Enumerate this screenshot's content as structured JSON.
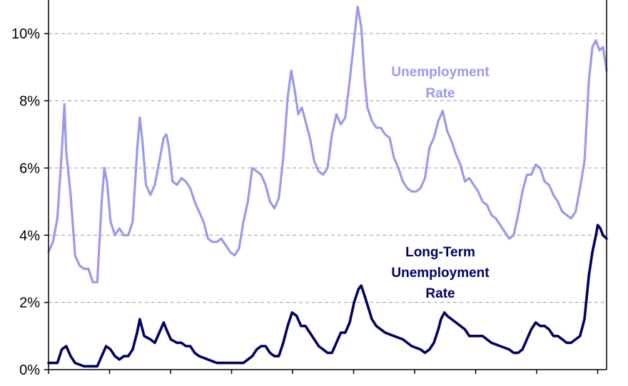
{
  "chart_data": {
    "type": "line",
    "title": "",
    "xlabel": "",
    "ylabel": "",
    "ylim": [
      0,
      11
    ],
    "x_range": [
      1948,
      2011
    ],
    "y_ticks": [
      0,
      2,
      4,
      6,
      8,
      10
    ],
    "y_tick_labels": [
      "0%",
      "2%",
      "4%",
      "6%",
      "8%",
      "10%"
    ],
    "grid": "horizontal dashed",
    "legend": "inline labels",
    "series": [
      {
        "name": "Unemployment Rate",
        "label_lines": [
          "Unemployment",
          "Rate"
        ],
        "color": "#9999ee",
        "x": [
          1948.0,
          1948.5,
          1949.0,
          1949.5,
          1949.8,
          1950.0,
          1950.5,
          1951.0,
          1951.5,
          1952.0,
          1952.5,
          1953.0,
          1953.5,
          1954.0,
          1954.3,
          1954.6,
          1955.0,
          1955.5,
          1956.0,
          1956.5,
          1957.0,
          1957.5,
          1958.0,
          1958.3,
          1958.6,
          1959.0,
          1959.5,
          1960.0,
          1960.5,
          1961.0,
          1961.3,
          1961.6,
          1962.0,
          1962.5,
          1963.0,
          1963.5,
          1964.0,
          1964.5,
          1965.0,
          1965.5,
          1966.0,
          1966.5,
          1967.0,
          1967.5,
          1968.0,
          1968.5,
          1969.0,
          1969.5,
          1970.0,
          1970.5,
          1971.0,
          1971.5,
          1972.0,
          1972.5,
          1973.0,
          1973.5,
          1974.0,
          1974.5,
          1975.0,
          1975.4,
          1975.8,
          1976.2,
          1976.6,
          1977.0,
          1977.5,
          1978.0,
          1978.5,
          1979.0,
          1979.5,
          1980.0,
          1980.5,
          1981.0,
          1981.5,
          1982.0,
          1982.5,
          1982.9,
          1983.3,
          1983.7,
          1984.0,
          1984.5,
          1985.0,
          1985.5,
          1986.0,
          1986.5,
          1987.0,
          1987.5,
          1988.0,
          1988.5,
          1989.0,
          1989.5,
          1990.0,
          1990.5,
          1991.0,
          1991.5,
          1992.0,
          1992.5,
          1993.0,
          1993.5,
          1994.0,
          1994.5,
          1995.0,
          1995.5,
          1996.0,
          1996.5,
          1997.0,
          1997.5,
          1998.0,
          1998.5,
          1999.0,
          1999.5,
          2000.0,
          2000.5,
          2001.0,
          2001.5,
          2002.0,
          2002.5,
          2003.0,
          2003.5,
          2004.0,
          2004.5,
          2005.0,
          2005.5,
          2006.0,
          2006.5,
          2007.0,
          2007.5,
          2008.0,
          2008.5,
          2009.0,
          2009.4,
          2009.8,
          2010.2,
          2010.6,
          2011.0
        ],
        "values": [
          3.5,
          3.8,
          4.5,
          6.5,
          7.9,
          6.5,
          5.2,
          3.4,
          3.1,
          3.0,
          3.0,
          2.6,
          2.6,
          5.0,
          6.0,
          5.6,
          4.4,
          4.0,
          4.2,
          4.0,
          4.0,
          4.4,
          6.5,
          7.5,
          6.8,
          5.5,
          5.2,
          5.5,
          6.2,
          6.9,
          7.0,
          6.6,
          5.6,
          5.5,
          5.7,
          5.6,
          5.4,
          5.0,
          4.7,
          4.4,
          3.9,
          3.8,
          3.8,
          3.9,
          3.7,
          3.5,
          3.4,
          3.6,
          4.4,
          5.0,
          6.0,
          5.9,
          5.8,
          5.5,
          5.0,
          4.8,
          5.1,
          6.3,
          8.1,
          8.9,
          8.3,
          7.6,
          7.8,
          7.4,
          6.9,
          6.2,
          5.9,
          5.8,
          6.0,
          7.0,
          7.6,
          7.3,
          7.5,
          8.6,
          9.8,
          10.8,
          10.2,
          8.6,
          7.8,
          7.4,
          7.2,
          7.2,
          7.0,
          6.9,
          6.3,
          6.0,
          5.6,
          5.4,
          5.3,
          5.3,
          5.4,
          5.7,
          6.6,
          6.9,
          7.4,
          7.7,
          7.1,
          6.8,
          6.4,
          6.1,
          5.6,
          5.7,
          5.5,
          5.3,
          5.0,
          4.9,
          4.6,
          4.5,
          4.3,
          4.1,
          3.9,
          4.0,
          4.6,
          5.3,
          5.8,
          5.8,
          6.1,
          6.0,
          5.6,
          5.5,
          5.2,
          5.0,
          4.7,
          4.6,
          4.5,
          4.7,
          5.4,
          6.2,
          8.6,
          9.6,
          9.8,
          9.5,
          9.6,
          8.9
        ]
      },
      {
        "name": "Long-Term Unemployment Rate",
        "label_lines": [
          "Long-Term",
          "Unemployment",
          "Rate"
        ],
        "color": "#000066",
        "x": [
          1948.0,
          1949.0,
          1949.5,
          1950.0,
          1950.5,
          1951.0,
          1952.0,
          1953.0,
          1953.5,
          1954.0,
          1954.5,
          1955.0,
          1955.5,
          1956.0,
          1956.5,
          1957.0,
          1957.5,
          1958.0,
          1958.3,
          1958.8,
          1959.5,
          1960.0,
          1960.5,
          1961.0,
          1961.3,
          1961.8,
          1962.5,
          1963.0,
          1963.5,
          1964.0,
          1964.5,
          1965.0,
          1966.0,
          1967.0,
          1968.0,
          1969.0,
          1970.0,
          1971.0,
          1971.5,
          1972.0,
          1972.5,
          1973.0,
          1973.5,
          1974.0,
          1974.5,
          1975.0,
          1975.5,
          1976.0,
          1976.5,
          1977.0,
          1977.5,
          1978.0,
          1978.5,
          1979.0,
          1979.5,
          1980.0,
          1980.5,
          1981.0,
          1981.5,
          1982.0,
          1982.5,
          1983.0,
          1983.3,
          1983.8,
          1984.5,
          1985.0,
          1985.5,
          1986.0,
          1987.0,
          1988.0,
          1989.0,
          1990.0,
          1990.5,
          1991.0,
          1991.5,
          1992.0,
          1992.3,
          1992.7,
          1993.0,
          1993.5,
          1994.0,
          1994.5,
          1995.0,
          1995.5,
          1996.0,
          1996.5,
          1997.0,
          1998.0,
          1999.0,
          2000.0,
          2000.5,
          2001.0,
          2001.5,
          2002.0,
          2002.5,
          2003.0,
          2003.5,
          2004.0,
          2004.5,
          2005.0,
          2005.5,
          2006.0,
          2006.5,
          2007.0,
          2007.5,
          2008.0,
          2008.5,
          2009.0,
          2009.4,
          2009.8,
          2010.0,
          2010.3,
          2010.6,
          2011.0
        ],
        "values": [
          0.2,
          0.2,
          0.6,
          0.7,
          0.4,
          0.2,
          0.1,
          0.1,
          0.1,
          0.4,
          0.7,
          0.6,
          0.4,
          0.3,
          0.4,
          0.4,
          0.6,
          1.1,
          1.5,
          1.0,
          0.9,
          0.8,
          1.1,
          1.4,
          1.2,
          0.9,
          0.8,
          0.8,
          0.7,
          0.7,
          0.5,
          0.4,
          0.3,
          0.2,
          0.2,
          0.2,
          0.2,
          0.4,
          0.6,
          0.7,
          0.7,
          0.5,
          0.4,
          0.4,
          0.8,
          1.3,
          1.7,
          1.6,
          1.3,
          1.3,
          1.1,
          0.9,
          0.7,
          0.6,
          0.5,
          0.5,
          0.8,
          1.1,
          1.1,
          1.4,
          2.0,
          2.4,
          2.5,
          2.1,
          1.5,
          1.3,
          1.2,
          1.1,
          1.0,
          0.9,
          0.7,
          0.6,
          0.5,
          0.6,
          0.8,
          1.2,
          1.5,
          1.7,
          1.6,
          1.5,
          1.4,
          1.3,
          1.2,
          1.0,
          1.0,
          1.0,
          1.0,
          0.8,
          0.7,
          0.6,
          0.5,
          0.5,
          0.6,
          0.9,
          1.2,
          1.4,
          1.3,
          1.3,
          1.2,
          1.0,
          1.0,
          0.9,
          0.8,
          0.8,
          0.9,
          1.0,
          1.5,
          2.8,
          3.5,
          4.0,
          4.3,
          4.2,
          4.0,
          3.9
        ]
      }
    ]
  }
}
